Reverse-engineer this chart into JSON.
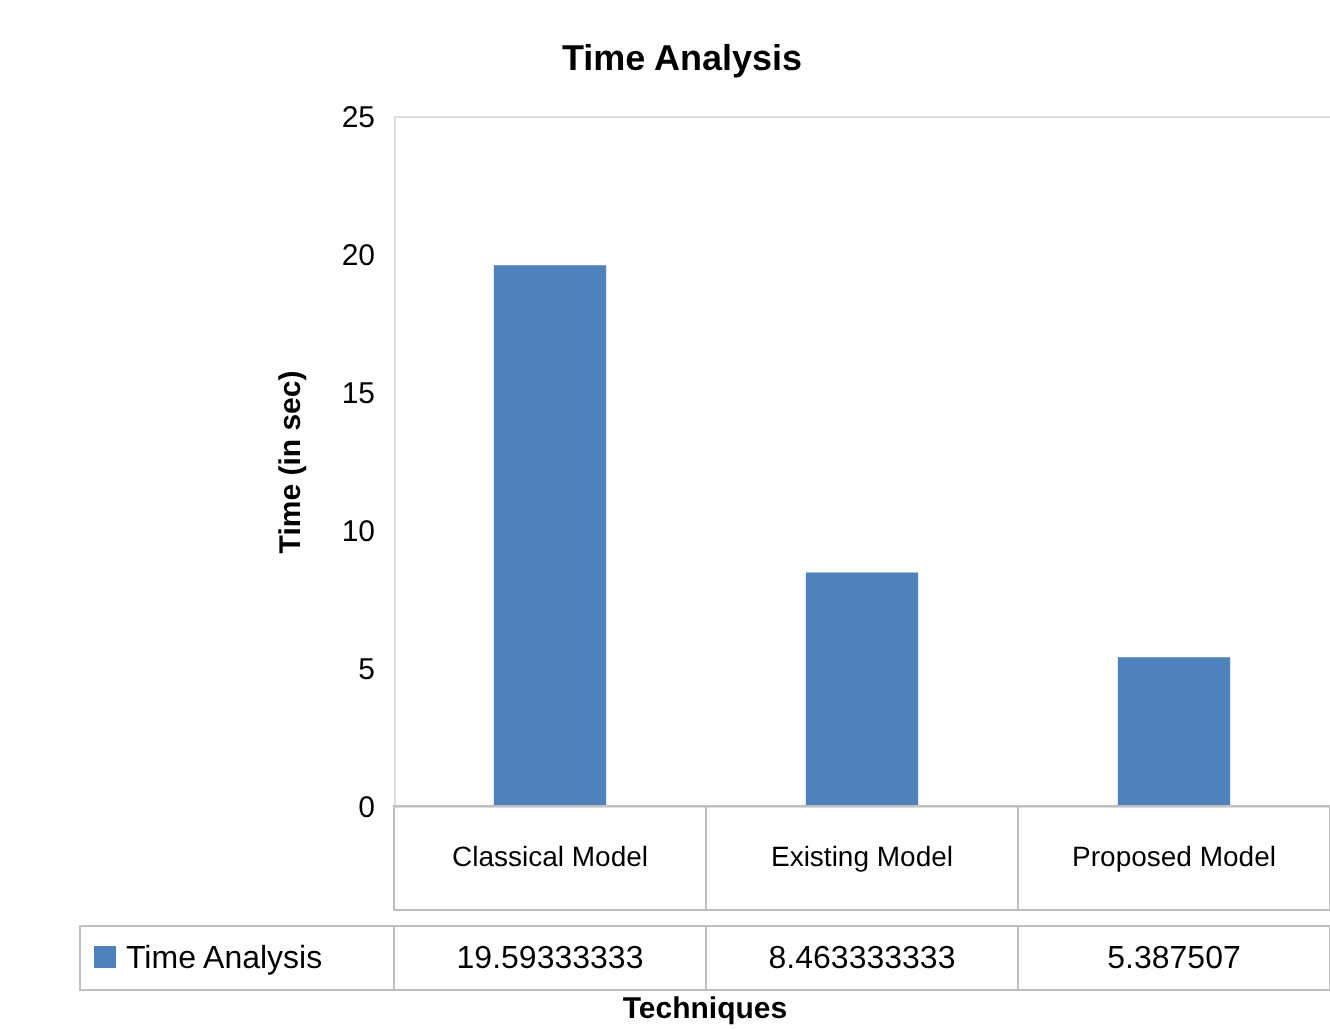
{
  "chart_data": {
    "type": "bar",
    "title": "Time Analysis",
    "xlabel": "Techniques",
    "ylabel": "Time (in sec)",
    "categories": [
      "Classical Model",
      "Existing Model",
      "Proposed Model"
    ],
    "series": [
      {
        "name": "Time Analysis",
        "color": "#4f81bd",
        "values": [
          19.59333333,
          8.463333333,
          5.387507
        ]
      }
    ],
    "ylim": [
      0,
      25
    ],
    "yticks": [
      0,
      5,
      10,
      15,
      20,
      25
    ],
    "grid": false,
    "legend": "bottom",
    "data_labels": true
  }
}
